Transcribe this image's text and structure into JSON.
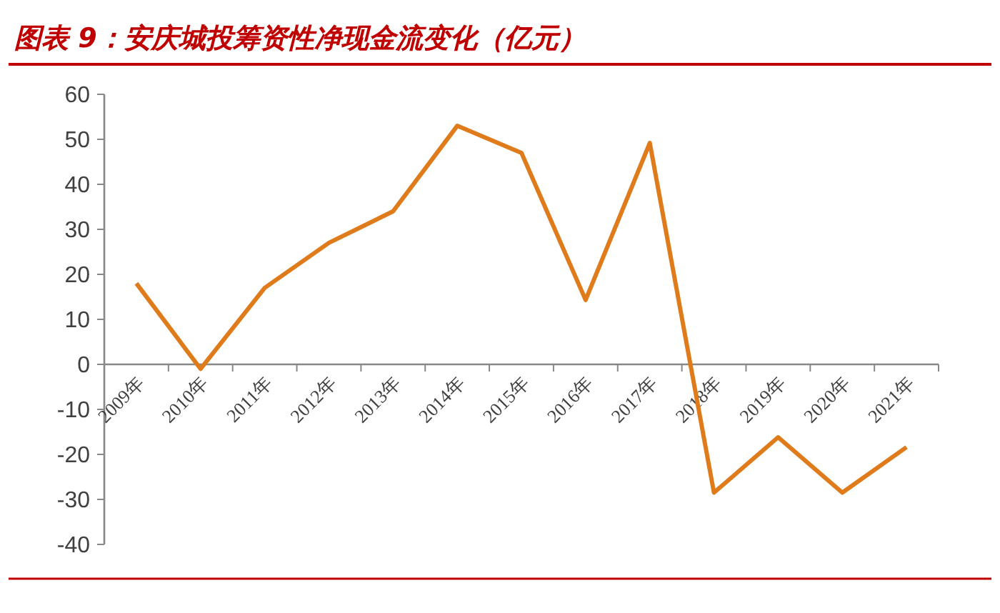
{
  "chart_data": {
    "type": "line",
    "title": "图表 9：安庆城投筹资性净现金流变化（亿元）",
    "categories": [
      "2009年",
      "2010年",
      "2011年",
      "2012年",
      "2013年",
      "2014年",
      "2015年",
      "2016年",
      "2017年",
      "2018年",
      "2019年",
      "2020年",
      "2021年"
    ],
    "series": [
      {
        "color": "#e07b1c",
        "values": [
          18,
          -1,
          17,
          27,
          34,
          53,
          47,
          14.3,
          49.2,
          -28.5,
          -16.2,
          -28.5,
          -18.4
        ]
      }
    ],
    "ylim": [
      -40,
      60
    ],
    "yticks": [
      -40,
      -30,
      -20,
      -10,
      0,
      10,
      20,
      30,
      40,
      50,
      60
    ],
    "grid": false,
    "marker": "none",
    "line_style": "solid"
  }
}
